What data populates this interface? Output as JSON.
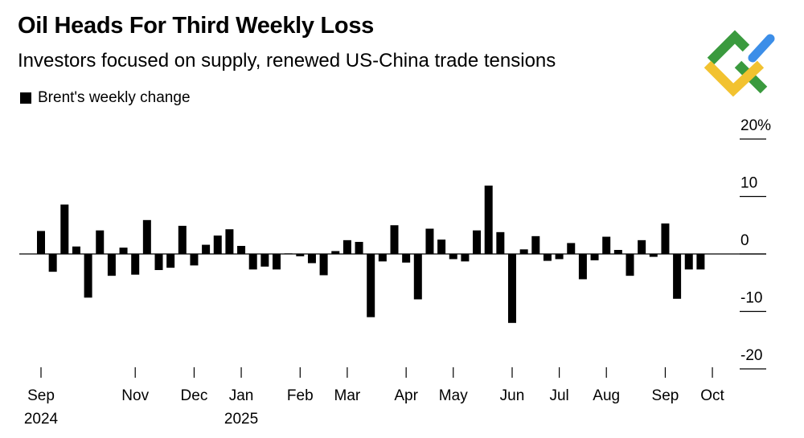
{
  "header": {
    "title": "Oil Heads For Third Weekly Loss",
    "subtitle": "Investors focused on supply, renewed US-China trade tensions"
  },
  "colors": {
    "bars": "#000000",
    "logo_green": "#3a9a3e",
    "logo_yellow": "#f2c230",
    "logo_blue": "#3c8ee8"
  },
  "chart_data": {
    "type": "bar",
    "title": "Oil Heads For Third Weekly Loss",
    "subtitle": "Investors focused on supply, renewed US-China trade tensions",
    "legend": [
      {
        "label": "Brent's weekly change",
        "placement": "top-left"
      }
    ],
    "series": [
      {
        "name": "Brent's weekly change",
        "unit": "%",
        "values": [
          4.0,
          -3.1,
          8.6,
          1.3,
          -7.6,
          4.1,
          -3.8,
          1.1,
          -3.6,
          5.9,
          -2.8,
          -2.4,
          4.9,
          -2.0,
          1.6,
          3.2,
          4.3,
          1.4,
          -2.7,
          -2.2,
          -2.7,
          0.1,
          -0.4,
          -1.6,
          -3.7,
          0.5,
          2.4,
          2.1,
          -11.0,
          -1.3,
          5.0,
          -1.5,
          -7.9,
          4.4,
          2.5,
          -0.9,
          -1.3,
          4.1,
          11.9,
          3.8,
          -12.0,
          0.8,
          3.1,
          -1.2,
          -0.9,
          1.9,
          -4.4,
          -1.1,
          3.0,
          0.7,
          -3.8,
          2.4,
          -0.5,
          5.3,
          -7.8,
          -2.7,
          -2.7
        ]
      }
    ],
    "x_ticks": [
      {
        "label": "Sep",
        "year": "2024"
      },
      {
        "label": "Nov",
        "year": ""
      },
      {
        "label": "Dec",
        "year": ""
      },
      {
        "label": "Jan",
        "year": "2025"
      },
      {
        "label": "Feb",
        "year": ""
      },
      {
        "label": "Mar",
        "year": ""
      },
      {
        "label": "Apr",
        "year": ""
      },
      {
        "label": "May",
        "year": ""
      },
      {
        "label": "Jun",
        "year": ""
      },
      {
        "label": "Jul",
        "year": ""
      },
      {
        "label": "Aug",
        "year": ""
      },
      {
        "label": "Sep",
        "year": ""
      },
      {
        "label": "Oct",
        "year": ""
      }
    ],
    "x_tick_week_index": [
      0,
      8,
      13,
      17,
      22,
      26,
      31,
      35,
      40,
      44,
      48,
      53,
      57
    ],
    "y_ticks": [
      {
        "value": 20,
        "label": "20%"
      },
      {
        "value": 10,
        "label": "10"
      },
      {
        "value": 0,
        "label": "0"
      },
      {
        "value": -10,
        "label": "-10"
      },
      {
        "value": -20,
        "label": "-20"
      }
    ],
    "ylim": [
      -20,
      20
    ],
    "xlabel": "",
    "ylabel": "",
    "zero_line": true,
    "axis_position": "right"
  }
}
